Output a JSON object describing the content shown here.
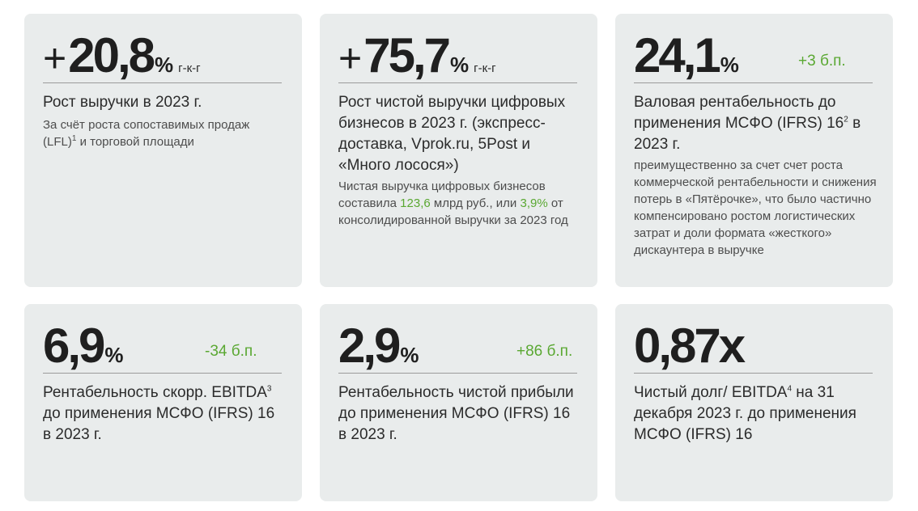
{
  "colors": {
    "card_bg": "#e9ecec",
    "accent_green": "#5aa832",
    "text": "#2b2b2b"
  },
  "cards": [
    {
      "value_prefix": "+",
      "value": "20,8",
      "pct": "%",
      "unit": "г-к-г",
      "headline": "Рост выручки в 2023 г.",
      "desc_a": "За счёт роста сопоставимых продаж (LFL)",
      "desc_sup": "1",
      "desc_b": " и торговой площади"
    },
    {
      "value_prefix": "+",
      "value": "75,7",
      "pct": "%",
      "unit": "г-к-г",
      "headline": "Рост чистой выручки цифровых бизнесов в 2023 г. (экспресс-доставка, Vprok.ru, 5Post и «Много лосося»)",
      "desc_a": "Чистая выручка цифровых бизнесов составила ",
      "desc_hl1": "123,6",
      "desc_b": " млрд руб., или ",
      "desc_hl2": "3,9%",
      "desc_c": " от консолидированной выручки за 2023 год"
    },
    {
      "value": "24,1",
      "pct": "%",
      "delta": "+3 б.п.",
      "headline_a": "Валовая рентабельность до применения МСФО (IFRS) 16",
      "headline_sup": "2",
      "headline_b": " в 2023 г.",
      "desc": "преимущественно за счет счет роста коммерческой рентабельности и снижения потерь в «Пятёрочке», что было частично компенсировано ростом логистических затрат и доли формата «жесткого» дискаунтера в выручке"
    },
    {
      "value": "6,9",
      "pct": "%",
      "delta": "-34 б.п.",
      "headline_a": "Рентабельность скорр. EBITDA",
      "headline_sup": "3",
      "headline_b": " до применения МСФО (IFRS) 16 в 2023 г."
    },
    {
      "value": "2,9",
      "pct": "%",
      "delta": "+86 б.п.",
      "headline": "Рентабельность чистой прибыли до применения МСФО (IFRS) 16 в 2023 г."
    },
    {
      "value": "0,87x",
      "headline_a": "Чистый долг/ EBITDA",
      "headline_sup": "4",
      "headline_b": " на 31 декабря 2023 г. до применения МСФО (IFRS) 16"
    }
  ]
}
